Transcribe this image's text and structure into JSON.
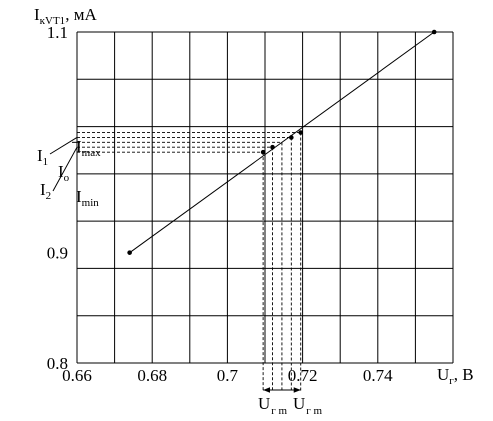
{
  "chart_data": {
    "type": "line",
    "ylabel": {
      "main": "I",
      "sub": "кVT1",
      "unit": ", мА"
    },
    "xlabel": {
      "main": "U",
      "sub": "г",
      "unit": ", В"
    },
    "xlim": [
      0.66,
      0.76
    ],
    "ylim": [
      0.8,
      1.1
    ],
    "x_ticks": [
      0.66,
      0.68,
      0.7,
      0.72,
      0.74
    ],
    "x_tick_labels": [
      "0.66",
      "0.68",
      "0.7",
      "0.72",
      "0.74"
    ],
    "y_ticks": [
      0.8,
      0.9,
      1.1
    ],
    "y_tick_labels": [
      "0.8",
      "0.9",
      "1.1"
    ],
    "grid": true,
    "series": [
      {
        "x": [
          0.674,
          0.755
        ],
        "y": [
          0.9,
          1.1
        ]
      }
    ],
    "operating_points": [
      {
        "x": 0.7095,
        "y": 0.9911
      },
      {
        "x": 0.712,
        "y": 0.9956
      },
      {
        "x": 0.7145,
        "y": 1.0
      },
      {
        "x": 0.717,
        "y": 1.0044
      },
      {
        "x": 0.7195,
        "y": 1.0089
      }
    ],
    "current_labels": [
      {
        "main": "I",
        "sub": "max"
      },
      {
        "main": "I",
        "sub": "1"
      },
      {
        "main": "I",
        "sub": "o"
      },
      {
        "main": "I",
        "sub": "2"
      },
      {
        "main": "I",
        "sub": "min"
      }
    ],
    "amplitude_labels": [
      {
        "main": "U",
        "sub": "г m"
      },
      {
        "main": "U",
        "sub": "г m"
      }
    ]
  }
}
